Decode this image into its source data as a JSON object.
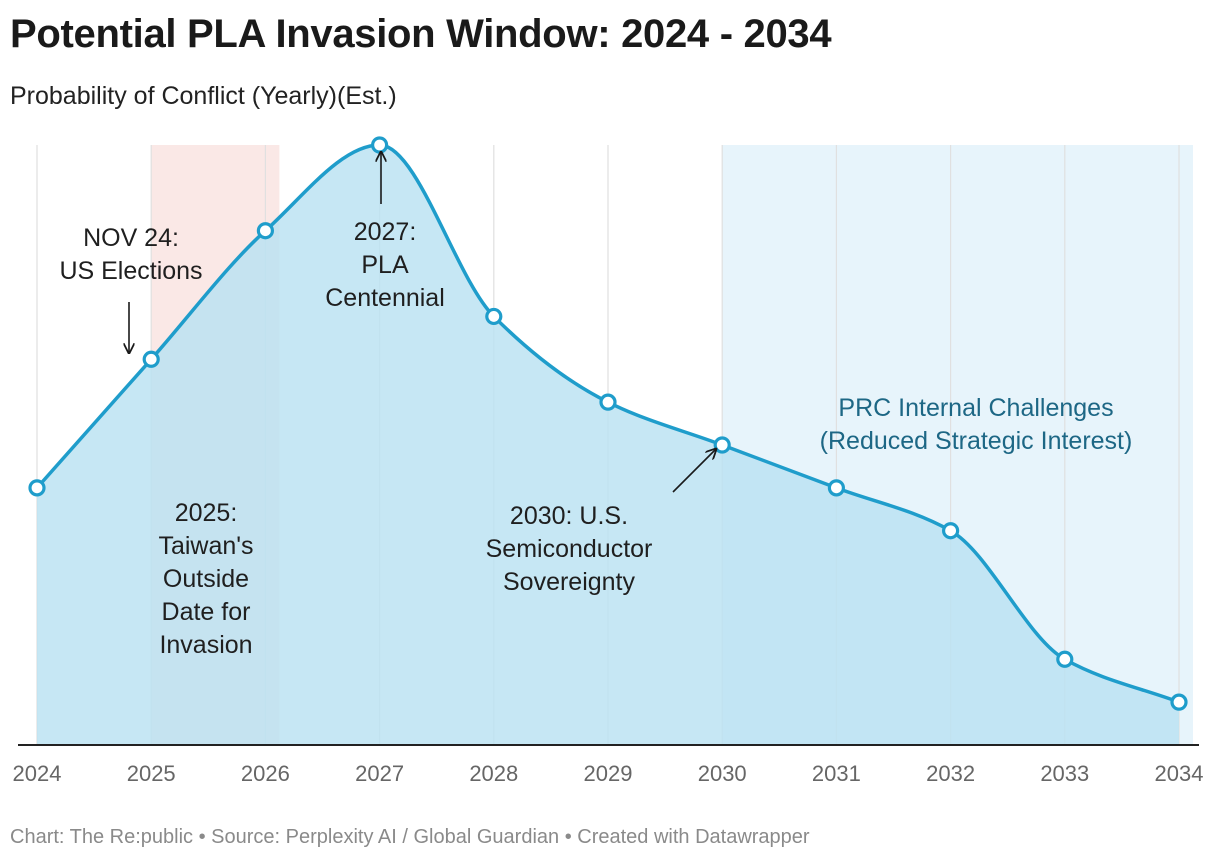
{
  "title": "Potential PLA Invasion Window: 2024 - 2034",
  "subtitle": "Probability of Conflict (Yearly)(Est.)",
  "footer": "Chart: The Re:public • Source: Perplexity AI / Global Guardian • Created with Datawrapper",
  "chart_data": {
    "type": "area",
    "title": "Potential PLA Invasion Window: 2024 - 2034",
    "subtitle": "Probability of Conflict (Yearly)(Est.)",
    "xlabel": "",
    "ylabel": "",
    "x": [
      2024,
      2025,
      2026,
      2027,
      2028,
      2029,
      2030,
      2031,
      2032,
      2033,
      2034
    ],
    "x_tick_labels": [
      "2024",
      "2025",
      "2026",
      "2027",
      "2028",
      "2029",
      "2030",
      "2031",
      "2032",
      "2033",
      "2034"
    ],
    "values": [
      60,
      90,
      120,
      140,
      100,
      80,
      70,
      60,
      50,
      20,
      10
    ],
    "ylim": [
      0,
      140
    ],
    "y_axis_labels_shown": false,
    "highlight_ranges": [
      {
        "name": "2025-2026",
        "from": 2025,
        "to": 2026,
        "color": "#f0b6b1"
      },
      {
        "name": "2030-2034",
        "from": 2030,
        "to": 2034,
        "color": "#dff0f9"
      }
    ],
    "annotations": [
      {
        "name": "nov24",
        "lines": [
          "NOV 24:",
          "US Elections"
        ]
      },
      {
        "name": "pla-centennial",
        "lines": [
          "2027:",
          "PLA",
          "Centennial"
        ]
      },
      {
        "name": "taiwan-outside-date",
        "lines": [
          "2025:",
          "Taiwan's",
          "Outside",
          "Date for",
          "Invasion"
        ]
      },
      {
        "name": "semiconductor",
        "lines": [
          "2030: U.S.",
          "Semiconductor",
          "Sovereignty"
        ]
      },
      {
        "name": "prc-challenges",
        "lines": [
          "PRC Internal Challenges",
          "(Reduced Strategic Interest)"
        ]
      }
    ],
    "colors": {
      "line": "#1f9dcb",
      "area": "#b9e2f1",
      "marker_fill": "#ffffff",
      "axis": "#222222",
      "grid": "#e0e0e0"
    }
  }
}
